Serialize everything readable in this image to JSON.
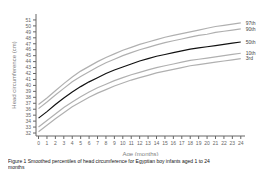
{
  "chart_data": {
    "type": "line",
    "xlabel": "Age (months)",
    "ylabel": "Head circumference (cm)",
    "caption": "Figure 1 Smoothed percentiles of head circumference for Egyptian boy infants aged 1 to 24\nmonths",
    "x": [
      0,
      1,
      2,
      3,
      4,
      5,
      6,
      7,
      8,
      9,
      10,
      11,
      12,
      13,
      14,
      15,
      16,
      17,
      18,
      19,
      20,
      21,
      22,
      23,
      24
    ],
    "xlim": [
      -0.3,
      24.5
    ],
    "xticks": [
      0,
      1,
      2,
      3,
      4,
      5,
      6,
      7,
      8,
      9,
      10,
      11,
      12,
      13,
      14,
      15,
      16,
      17,
      18,
      19,
      20,
      21,
      22,
      23,
      24
    ],
    "ylim": [
      31.5,
      52.0
    ],
    "yticks": [
      32,
      33,
      34,
      35,
      36,
      37,
      38,
      39,
      40,
      41,
      42,
      43,
      44,
      45,
      46,
      47,
      48,
      49,
      50,
      51
    ],
    "grid": false,
    "series": [
      {
        "name": "97th",
        "color": "#b0b0b0",
        "values": [
          36.8,
          37.9,
          39.1,
          40.3,
          41.4,
          42.4,
          43.2,
          44.0,
          44.7,
          45.3,
          45.9,
          46.4,
          46.9,
          47.3,
          47.7,
          48.1,
          48.4,
          48.7,
          49.0,
          49.3,
          49.6,
          49.9,
          50.1,
          50.3,
          50.5
        ]
      },
      {
        "name": "90th",
        "color": "#b0b0b0",
        "values": [
          36.1,
          37.2,
          38.4,
          39.5,
          40.6,
          41.5,
          42.3,
          43.1,
          43.8,
          44.4,
          45.0,
          45.5,
          46.0,
          46.4,
          46.8,
          47.2,
          47.5,
          47.8,
          48.1,
          48.4,
          48.6,
          48.9,
          49.1,
          49.3,
          49.5
        ]
      },
      {
        "name": "50th",
        "color": "#111111",
        "values": [
          34.5,
          35.6,
          36.8,
          37.9,
          38.9,
          39.8,
          40.6,
          41.3,
          42.0,
          42.6,
          43.1,
          43.6,
          44.1,
          44.5,
          44.9,
          45.2,
          45.5,
          45.8,
          46.1,
          46.3,
          46.5,
          46.7,
          46.9,
          47.1,
          47.3
        ]
      },
      {
        "name": "10th",
        "color": "#b0b0b0",
        "values": [
          33.0,
          34.1,
          35.2,
          36.3,
          37.2,
          38.1,
          38.9,
          39.6,
          40.2,
          40.8,
          41.3,
          41.8,
          42.2,
          42.6,
          43.0,
          43.3,
          43.6,
          43.9,
          44.2,
          44.4,
          44.6,
          44.8,
          45.0,
          45.2,
          45.4
        ]
      },
      {
        "name": "3rd",
        "color": "#b0b0b0",
        "values": [
          32.2,
          33.3,
          34.4,
          35.4,
          36.4,
          37.2,
          38.0,
          38.7,
          39.3,
          39.9,
          40.4,
          40.9,
          41.3,
          41.7,
          42.1,
          42.4,
          42.7,
          43.0,
          43.3,
          43.5,
          43.7,
          43.9,
          44.1,
          44.3,
          44.5
        ]
      }
    ]
  }
}
